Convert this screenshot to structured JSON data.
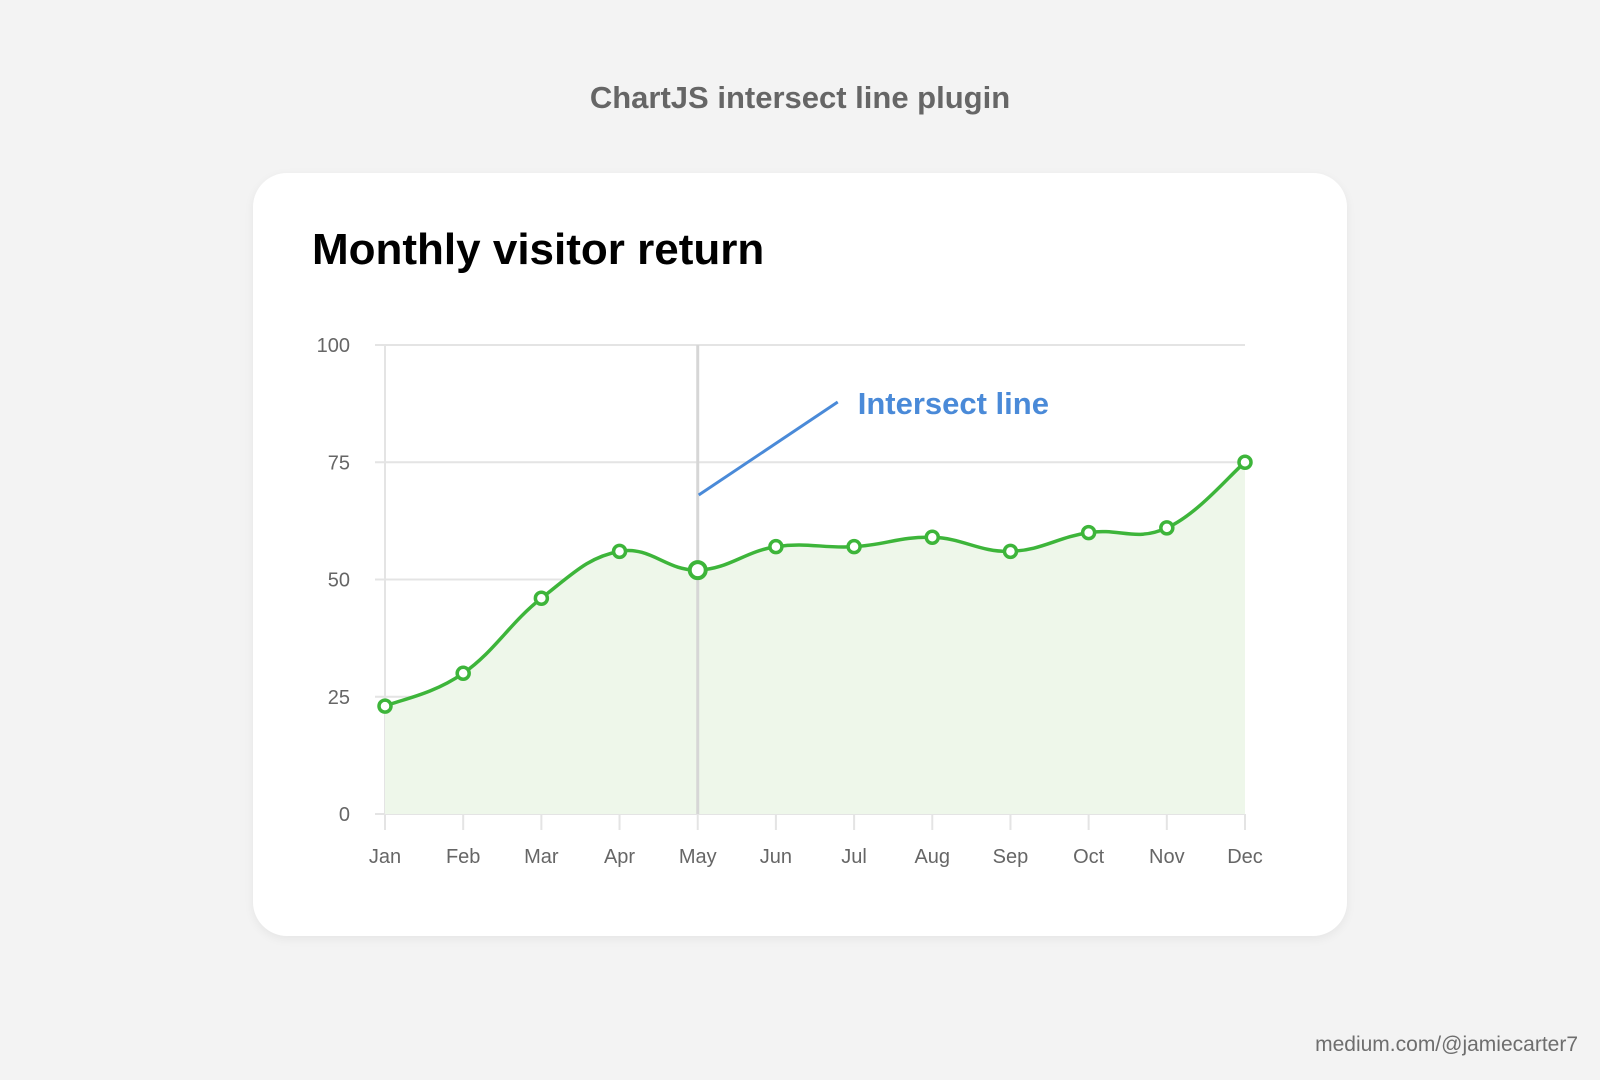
{
  "page": {
    "heading": "ChartJS intersect line plugin",
    "credit": "medium.com/@jamiecarter7"
  },
  "colors": {
    "line": "#3db53a",
    "fill": "#eef7ea",
    "grid": "#e4e4e4",
    "intersect_line": "#d6d6d6",
    "annotation": "#4a8ad8",
    "tick_label": "#666666"
  },
  "chart_data": {
    "type": "line",
    "title": "Monthly visitor return",
    "categories": [
      "Jan",
      "Feb",
      "Mar",
      "Apr",
      "May",
      "Jun",
      "Jul",
      "Aug",
      "Sep",
      "Oct",
      "Nov",
      "Dec"
    ],
    "series": [
      {
        "values": [
          23,
          30,
          46,
          56,
          52,
          57,
          57,
          59,
          56,
          60,
          61,
          75
        ],
        "fill": true,
        "smooth": true
      }
    ],
    "ylim": [
      0,
      100
    ],
    "yticks": [
      0,
      25,
      50,
      75,
      100
    ],
    "grid": true,
    "intersect_line": {
      "category": "May",
      "label": "Intersect line"
    }
  }
}
